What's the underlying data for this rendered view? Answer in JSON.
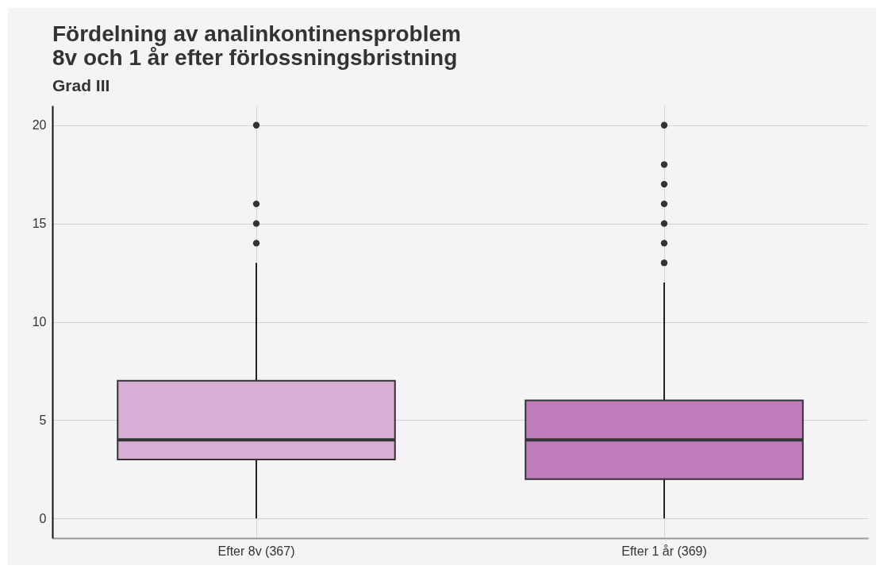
{
  "chart_data": {
    "type": "box",
    "title": "Fördelning av analinkontinensproblem\n8v och 1 år efter förlossningsbristning",
    "subtitle": "Grad III",
    "categories": [
      "Efter 8v (367)",
      "Efter 1 år (369)"
    ],
    "boxes": [
      {
        "low": 0,
        "q1": 3,
        "median": 4,
        "q3": 7,
        "high": 13,
        "outliers": [
          14,
          15,
          16,
          20
        ]
      },
      {
        "low": 0,
        "q1": 2,
        "median": 4,
        "q3": 6,
        "high": 12,
        "outliers": [
          13,
          14,
          15,
          16,
          17,
          18,
          20
        ]
      }
    ],
    "colors": [
      "#d9aed5",
      "#be7cba"
    ],
    "ylim": [
      -1,
      21
    ],
    "yticks": [
      0,
      5,
      10,
      15,
      20
    ],
    "grid": true
  }
}
